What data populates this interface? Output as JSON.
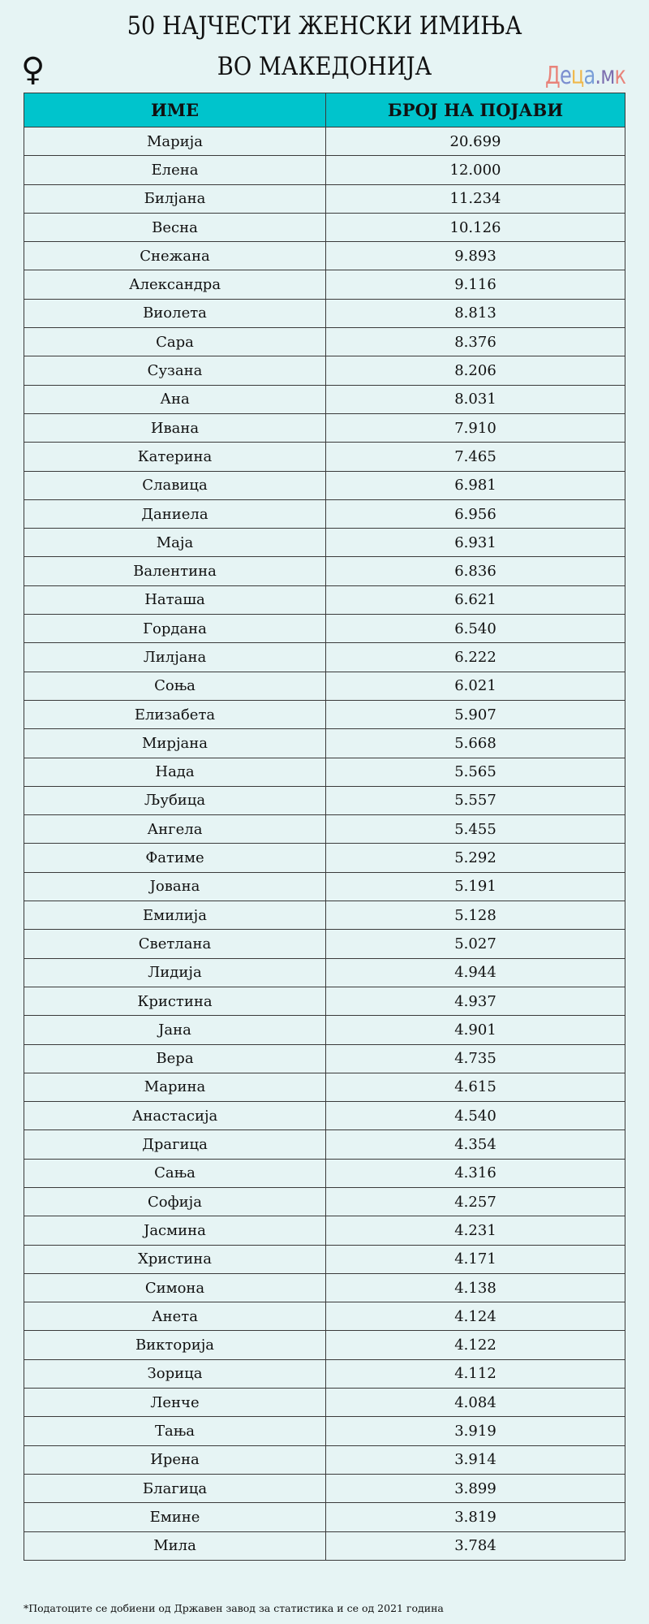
{
  "title": {
    "line1": "50 НАЈЧЕСТИ ЖЕНСКИ ИМИЊА",
    "line2": "ВО МАКЕДОНИЈА"
  },
  "icons": {
    "female": "female-symbol-icon"
  },
  "logo": {
    "text": "Деца.мк",
    "parts": [
      "Д",
      "е",
      "ц",
      "а",
      ".м",
      "к"
    ]
  },
  "colors": {
    "header_bg": "#00c4cc",
    "background": "#e6f4f4"
  },
  "table": {
    "headers": [
      "ИМЕ",
      "БРОЈ НА ПОЈАВИ"
    ],
    "rows": [
      [
        "Марија",
        "20.699"
      ],
      [
        "Елена",
        "12.000"
      ],
      [
        "Билјана",
        "11.234"
      ],
      [
        "Весна",
        "10.126"
      ],
      [
        "Снежана",
        "9.893"
      ],
      [
        "Александра",
        "9.116"
      ],
      [
        "Виолета",
        "8.813"
      ],
      [
        "Сара",
        "8.376"
      ],
      [
        "Сузана",
        "8.206"
      ],
      [
        "Ана",
        "8.031"
      ],
      [
        "Ивана",
        "7.910"
      ],
      [
        "Катерина",
        "7.465"
      ],
      [
        "Славица",
        "6.981"
      ],
      [
        "Даниела",
        "6.956"
      ],
      [
        "Маја",
        "6.931"
      ],
      [
        "Валентина",
        "6.836"
      ],
      [
        "Наташа",
        "6.621"
      ],
      [
        "Гордана",
        "6.540"
      ],
      [
        "Лилјана",
        "6.222"
      ],
      [
        "Соња",
        "6.021"
      ],
      [
        "Елизабета",
        "5.907"
      ],
      [
        "Мирјана",
        "5.668"
      ],
      [
        "Нада",
        "5.565"
      ],
      [
        "Љубица",
        "5.557"
      ],
      [
        "Ангела",
        "5.455"
      ],
      [
        "Фатиме",
        "5.292"
      ],
      [
        "Јована",
        "5.191"
      ],
      [
        "Емилија",
        "5.128"
      ],
      [
        "Светлана",
        "5.027"
      ],
      [
        "Лидија",
        "4.944"
      ],
      [
        "Кристина",
        "4.937"
      ],
      [
        "Јана",
        "4.901"
      ],
      [
        "Вера",
        "4.735"
      ],
      [
        "Марина",
        "4.615"
      ],
      [
        "Анастасија",
        "4.540"
      ],
      [
        "Драгица",
        "4.354"
      ],
      [
        "Сања",
        "4.316"
      ],
      [
        "Софија",
        "4.257"
      ],
      [
        "Јасмина",
        "4.231"
      ],
      [
        "Христина",
        "4.171"
      ],
      [
        "Симона",
        "4.138"
      ],
      [
        "Анета",
        "4.124"
      ],
      [
        "Викторија",
        "4.122"
      ],
      [
        "Зорица",
        "4.112"
      ],
      [
        "Ленче",
        "4.084"
      ],
      [
        "Тања",
        "3.919"
      ],
      [
        "Ирена",
        "3.914"
      ],
      [
        "Благица",
        "3.899"
      ],
      [
        "Емине",
        "3.819"
      ],
      [
        "Мила",
        "3.784"
      ]
    ]
  },
  "footnote": "*Податоците се добиени од Државен завод за статистика и се од 2021 година"
}
